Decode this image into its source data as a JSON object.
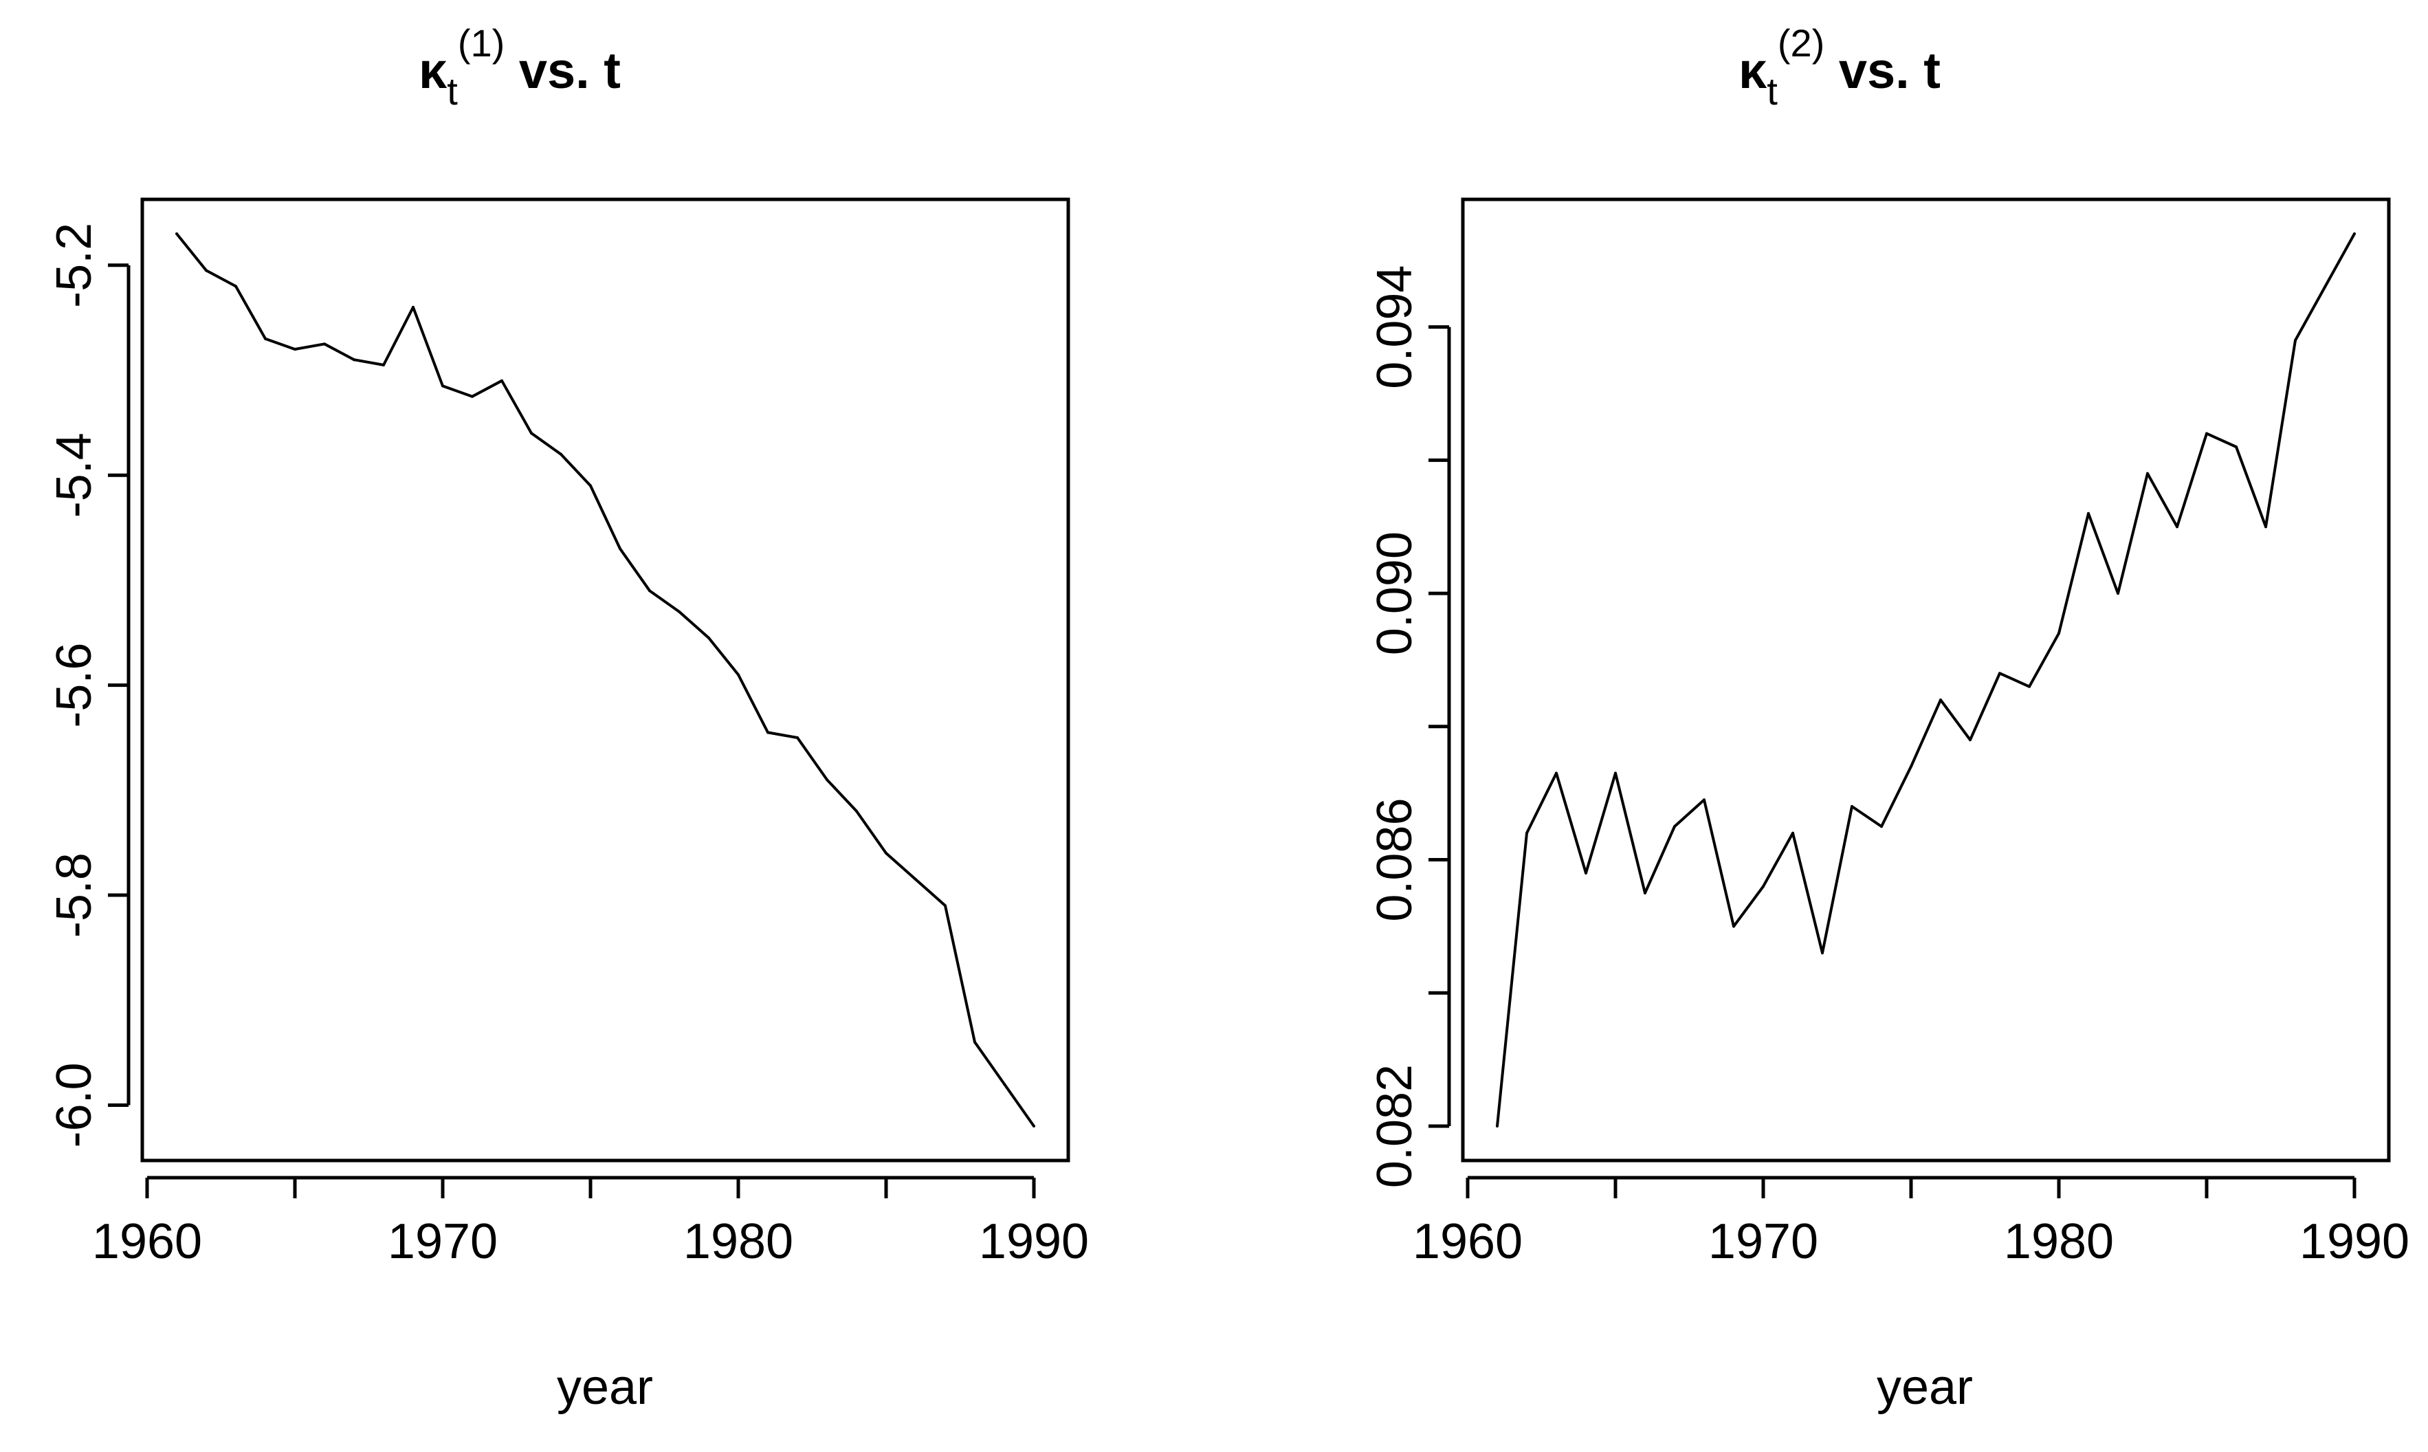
{
  "chart_data": [
    {
      "type": "line",
      "title": "κt(1) vs. t",
      "title_parts": {
        "symbol": "κ",
        "subscript": "t",
        "superscript": "(1)",
        "suffix": " vs. t"
      },
      "xlabel": "year",
      "ylabel": "",
      "xlim": [
        1961,
        1990
      ],
      "ylim": [
        -6.02,
        -5.17
      ],
      "xticks": [
        1960,
        1965,
        1970,
        1975,
        1980,
        1985,
        1990
      ],
      "xtick_labels": [
        "1960",
        "1970",
        "1980",
        "1990"
      ],
      "xtick_label_values": [
        1960,
        1970,
        1980,
        1990
      ],
      "yticks": [
        -6.0,
        -5.8,
        -5.6,
        -5.4,
        -5.2
      ],
      "ytick_labels": [
        "-6.0",
        "-5.8",
        "-5.6",
        "-5.4",
        "-5.2"
      ],
      "ytick_label_values": [
        -6.0,
        -5.8,
        -5.6,
        -5.4,
        -5.2
      ],
      "x": [
        1961,
        1962,
        1963,
        1964,
        1965,
        1966,
        1967,
        1968,
        1969,
        1970,
        1971,
        1972,
        1973,
        1974,
        1975,
        1976,
        1977,
        1978,
        1979,
        1980,
        1981,
        1982,
        1983,
        1984,
        1985,
        1986,
        1987,
        1988,
        1989,
        1990
      ],
      "y": [
        -5.17,
        -5.205,
        -5.22,
        -5.27,
        -5.28,
        -5.275,
        -5.29,
        -5.295,
        -5.24,
        -5.315,
        -5.325,
        -5.31,
        -5.36,
        -5.38,
        -5.41,
        -5.47,
        -5.51,
        -5.53,
        -5.555,
        -5.59,
        -5.645,
        -5.65,
        -5.69,
        -5.72,
        -5.76,
        -5.785,
        -5.81,
        -5.94,
        -5.98,
        -6.02
      ]
    },
    {
      "type": "line",
      "title": "κt(2) vs. t",
      "title_parts": {
        "symbol": "κ",
        "subscript": "t",
        "superscript": "(2)",
        "suffix": " vs. t"
      },
      "xlabel": "year",
      "ylabel": "",
      "xlim": [
        1961,
        1990
      ],
      "ylim": [
        0.082,
        0.0954
      ],
      "xticks": [
        1960,
        1965,
        1970,
        1975,
        1980,
        1985,
        1990
      ],
      "xtick_labels": [
        "1960",
        "1970",
        "1980",
        "1990"
      ],
      "xtick_label_values": [
        1960,
        1970,
        1980,
        1990
      ],
      "yticks": [
        0.082,
        0.084,
        0.086,
        0.088,
        0.09,
        0.092,
        0.094
      ],
      "ytick_labels": [
        "0.082",
        "0.086",
        "0.090",
        "0.094"
      ],
      "ytick_label_values": [
        0.082,
        0.086,
        0.09,
        0.094
      ],
      "x": [
        1961,
        1962,
        1963,
        1964,
        1965,
        1966,
        1967,
        1968,
        1969,
        1970,
        1971,
        1972,
        1973,
        1974,
        1975,
        1976,
        1977,
        1978,
        1979,
        1980,
        1981,
        1982,
        1983,
        1984,
        1985,
        1986,
        1987,
        1988,
        1989,
        1990
      ],
      "y": [
        0.082,
        0.0864,
        0.0873,
        0.0858,
        0.0873,
        0.0855,
        0.0865,
        0.0869,
        0.085,
        0.0856,
        0.0864,
        0.0846,
        0.0868,
        0.0865,
        0.0874,
        0.0884,
        0.0878,
        0.0888,
        0.0886,
        0.0894,
        0.0912,
        0.09,
        0.0918,
        0.091,
        0.0924,
        0.0922,
        0.091,
        0.0938,
        0.0946,
        0.0954
      ]
    }
  ]
}
